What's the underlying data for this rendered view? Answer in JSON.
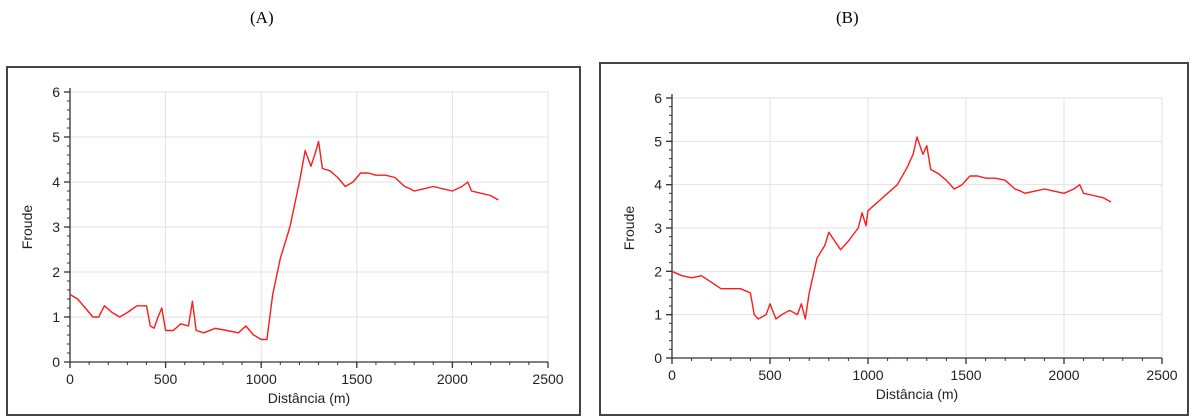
{
  "panels": [
    {
      "label": "(A)"
    },
    {
      "label": "(B)"
    }
  ],
  "chart_data": [
    {
      "type": "line",
      "title": "",
      "xlabel": "Distância (m)",
      "ylabel": "Froude",
      "xlim": [
        0,
        2500
      ],
      "ylim": [
        0,
        6
      ],
      "xticks": [
        0,
        500,
        1000,
        1500,
        2000,
        2500
      ],
      "yticks": [
        0,
        1,
        2,
        3,
        4,
        5,
        6
      ],
      "grid": true,
      "line_color": "#ff1a1a",
      "series": [
        {
          "x": [
            0,
            40,
            80,
            120,
            150,
            180,
            220,
            260,
            300,
            350,
            400,
            420,
            440,
            460,
            480,
            500,
            540,
            580,
            620,
            640,
            660,
            700,
            760,
            820,
            880,
            920,
            960,
            1000,
            1030,
            1060,
            1100,
            1150,
            1200,
            1230,
            1260,
            1280,
            1300,
            1320,
            1360,
            1400,
            1440,
            1480,
            1520,
            1560,
            1600,
            1650,
            1700,
            1750,
            1780,
            1800,
            1850,
            1900,
            1950,
            2000,
            2050,
            2080,
            2100,
            2150,
            2200,
            2240
          ],
          "y": [
            1.5,
            1.4,
            1.2,
            1.0,
            1.0,
            1.25,
            1.1,
            1.0,
            1.1,
            1.25,
            1.25,
            0.8,
            0.75,
            1.0,
            1.2,
            0.7,
            0.7,
            0.85,
            0.8,
            1.35,
            0.7,
            0.65,
            0.75,
            0.7,
            0.65,
            0.8,
            0.6,
            0.5,
            0.5,
            1.5,
            2.3,
            3.0,
            4.0,
            4.7,
            4.35,
            4.6,
            4.9,
            4.3,
            4.25,
            4.1,
            3.9,
            4.0,
            4.2,
            4.2,
            4.15,
            4.15,
            4.1,
            3.9,
            3.85,
            3.8,
            3.85,
            3.9,
            3.85,
            3.8,
            3.9,
            4.0,
            3.8,
            3.75,
            3.7,
            3.6
          ]
        }
      ]
    },
    {
      "type": "line",
      "title": "",
      "xlabel": "Distância (m)",
      "ylabel": "Froude",
      "xlim": [
        0,
        2500
      ],
      "ylim": [
        0,
        6
      ],
      "xticks": [
        0,
        500,
        1000,
        1500,
        2000,
        2500
      ],
      "yticks": [
        0,
        1,
        2,
        3,
        4,
        5,
        6
      ],
      "grid": true,
      "line_color": "#ff1a1a",
      "series": [
        {
          "x": [
            0,
            50,
            100,
            150,
            200,
            250,
            300,
            350,
            400,
            420,
            440,
            460,
            480,
            500,
            530,
            560,
            600,
            640,
            660,
            680,
            700,
            740,
            780,
            800,
            830,
            860,
            900,
            950,
            970,
            990,
            1000,
            1050,
            1100,
            1150,
            1200,
            1230,
            1250,
            1280,
            1300,
            1320,
            1360,
            1400,
            1440,
            1480,
            1520,
            1560,
            1600,
            1650,
            1700,
            1750,
            1780,
            1800,
            1850,
            1900,
            1950,
            2000,
            2050,
            2080,
            2100,
            2150,
            2200,
            2240
          ],
          "y": [
            2.0,
            1.9,
            1.85,
            1.9,
            1.75,
            1.6,
            1.6,
            1.6,
            1.5,
            1.0,
            0.9,
            0.95,
            1.0,
            1.25,
            0.9,
            1.0,
            1.1,
            1.0,
            1.25,
            0.9,
            1.5,
            2.3,
            2.6,
            2.9,
            2.7,
            2.5,
            2.7,
            3.0,
            3.35,
            3.05,
            3.4,
            3.6,
            3.8,
            4.0,
            4.4,
            4.7,
            5.1,
            4.7,
            4.9,
            4.35,
            4.25,
            4.1,
            3.9,
            4.0,
            4.2,
            4.2,
            4.15,
            4.15,
            4.1,
            3.9,
            3.85,
            3.8,
            3.85,
            3.9,
            3.85,
            3.8,
            3.9,
            4.0,
            3.8,
            3.75,
            3.7,
            3.6
          ]
        }
      ]
    }
  ]
}
